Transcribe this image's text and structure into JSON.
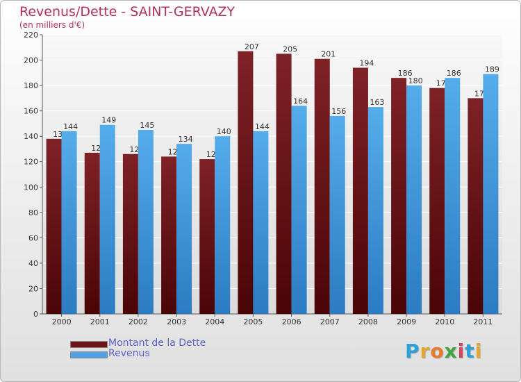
{
  "header": {
    "title": "Revenus/Dette - SAINT-GERVAZY",
    "subtitle": "(en milliers d'€)"
  },
  "chart_data": {
    "type": "bar",
    "title": "Revenus/Dette - SAINT-GERVAZY",
    "ylabel": "(en milliers d'€)",
    "ylim": [
      0,
      220
    ],
    "yticks": [
      0,
      20,
      40,
      60,
      80,
      100,
      120,
      140,
      160,
      180,
      200,
      220
    ],
    "grid": true,
    "legend_position": "bottom-left",
    "categories": [
      "2000",
      "2001",
      "2002",
      "2003",
      "2004",
      "2005",
      "2006",
      "2007",
      "2008",
      "2009",
      "2010",
      "2011"
    ],
    "series": [
      {
        "name": "Montant de la Dette",
        "color": "#7a1e22",
        "values": [
          138,
          127,
          126,
          124,
          122,
          207,
          205,
          201,
          194,
          186,
          178,
          170
        ]
      },
      {
        "name": "Revenus",
        "color": "#4ea3e6",
        "values": [
          144,
          149,
          145,
          134,
          140,
          144,
          164,
          156,
          163,
          180,
          186,
          189
        ]
      }
    ]
  },
  "legend": {
    "items": [
      {
        "label": "Montant de la Dette",
        "color": "#6e1518"
      },
      {
        "label": "Revenus",
        "color": "#4ea3e6"
      }
    ]
  },
  "logo": {
    "letters": [
      "P",
      "r",
      "o",
      "x",
      "i",
      "t",
      "i"
    ],
    "colors": [
      "#2aa2d6",
      "#e2a72b",
      "#e87a2a",
      "#3fa63d",
      "#d6465a",
      "#2aa2d6",
      "#e2a72b"
    ]
  }
}
